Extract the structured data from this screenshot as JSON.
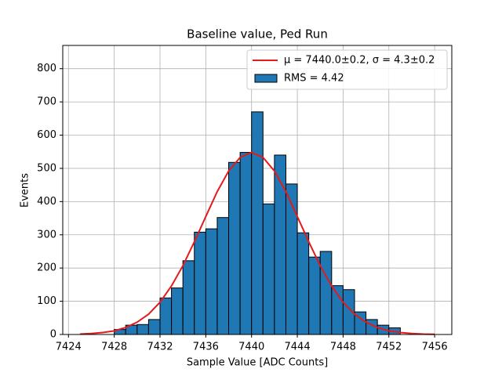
{
  "chart_data": {
    "type": "histogram",
    "title": "Baseline value, Ped Run",
    "xlabel": "Sample Value [ADC Counts]",
    "ylabel": "Events",
    "name": "RMS = 4.42",
    "color": "#1f77b4",
    "bins": [
      7428,
      7429,
      7430,
      7431,
      7432,
      7433,
      7434,
      7435,
      7436,
      7437,
      7438,
      7439,
      7440,
      7441,
      7442,
      7443,
      7444,
      7445,
      7446,
      7447,
      7448,
      7449,
      7450,
      7451,
      7452,
      7453
    ],
    "counts": [
      15,
      28,
      30,
      45,
      110,
      140,
      222,
      308,
      318,
      352,
      518,
      548,
      670,
      393,
      540,
      453,
      306,
      233,
      250,
      147,
      135,
      68,
      45,
      28,
      20
    ],
    "fit": {
      "name": "μ = 7440.0±0.2, σ = 4.3±0.2",
      "color": "#e41a1c",
      "x": [
        7425,
        7426,
        7427,
        7428,
        7429,
        7430,
        7431,
        7432,
        7433,
        7434,
        7435,
        7436,
        7437,
        7438,
        7439,
        7440,
        7441,
        7442,
        7443,
        7444,
        7445,
        7446,
        7447,
        7448,
        7449,
        7450,
        7451,
        7452,
        7453,
        7454,
        7455,
        7456
      ],
      "values": [
        1.3,
        3,
        6,
        11,
        21,
        37,
        61,
        97,
        146,
        207,
        279,
        355,
        430,
        492,
        533,
        548,
        533,
        492,
        430,
        355,
        279,
        207,
        146,
        97,
        61,
        37,
        21,
        11,
        6,
        3,
        1.3,
        0.5
      ]
    },
    "xlim": [
      7423.5,
      7457.5
    ],
    "ylim": [
      0,
      870
    ],
    "xticks": [
      7424,
      7428,
      7432,
      7436,
      7440,
      7444,
      7448,
      7452,
      7456
    ],
    "yticks": [
      0,
      100,
      200,
      300,
      400,
      500,
      600,
      700,
      800
    ],
    "grid": true,
    "legend": "upper right"
  }
}
